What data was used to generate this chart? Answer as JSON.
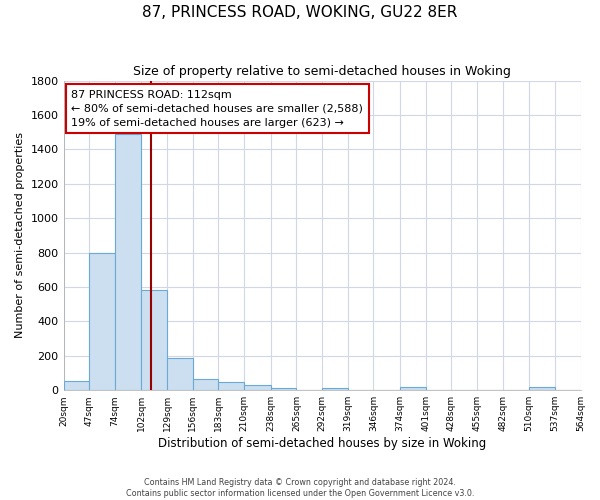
{
  "title": "87, PRINCESS ROAD, WOKING, GU22 8ER",
  "subtitle": "Size of property relative to semi-detached houses in Woking",
  "xlabel": "Distribution of semi-detached houses by size in Woking",
  "ylabel": "Number of semi-detached properties",
  "footer_line1": "Contains HM Land Registry data © Crown copyright and database right 2024.",
  "footer_line2": "Contains public sector information licensed under the Open Government Licence v3.0.",
  "bin_edges": [
    20,
    47,
    74,
    102,
    129,
    156,
    183,
    210,
    238,
    265,
    292,
    319,
    346,
    374,
    401,
    428,
    455,
    482,
    510,
    537,
    564
  ],
  "bin_counts": [
    55,
    800,
    1490,
    580,
    190,
    65,
    45,
    30,
    15,
    0,
    15,
    0,
    0,
    20,
    0,
    0,
    0,
    0,
    20,
    0
  ],
  "property_value": 112,
  "annotation_title": "87 PRINCESS ROAD: 112sqm",
  "annotation_line1": "← 80% of semi-detached houses are smaller (2,588)",
  "annotation_line2": "19% of semi-detached houses are larger (623) →",
  "bar_color": "#ccdff0",
  "bar_edge_color": "#6aaad4",
  "vline_color": "#990000",
  "annotation_box_edge": "#cc0000",
  "plot_bg_color": "#ffffff",
  "fig_bg_color": "#ffffff",
  "grid_color": "#d0d8e8",
  "ylim": [
    0,
    1800
  ],
  "title_fontsize": 11,
  "subtitle_fontsize": 9,
  "tick_labels": [
    "20sqm",
    "47sqm",
    "74sqm",
    "102sqm",
    "129sqm",
    "156sqm",
    "183sqm",
    "210sqm",
    "238sqm",
    "265sqm",
    "292sqm",
    "319sqm",
    "346sqm",
    "374sqm",
    "401sqm",
    "428sqm",
    "455sqm",
    "482sqm",
    "510sqm",
    "537sqm",
    "564sqm"
  ]
}
